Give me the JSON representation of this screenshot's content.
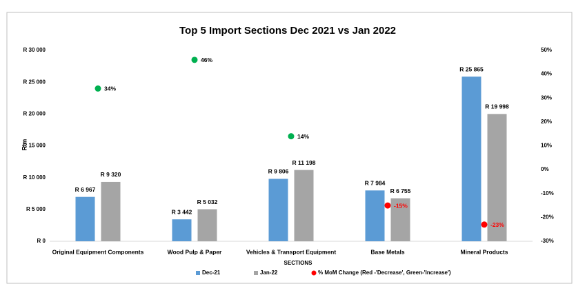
{
  "chart_data": {
    "type": "bar",
    "title": "Top 5 Import Sections Dec 2021 vs Jan 2022",
    "y_label": "R'm",
    "x_label": "SECTIONS",
    "categories": [
      "Original Equipment Components",
      "Wood Pulp & Paper",
      "Vehicles & Transport Equipment",
      "Base Metals",
      "Mineral Products"
    ],
    "series": [
      {
        "name": "Dec-21",
        "type": "bar",
        "color": "#5b9bd5",
        "values": [
          6967,
          3442,
          9806,
          7984,
          25865
        ],
        "value_labels": [
          "R 6 967",
          "R 3 442",
          "R 9 806",
          "R 7 984",
          "R 25 865"
        ]
      },
      {
        "name": "Jan-22",
        "type": "bar",
        "color": "#a5a5a5",
        "values": [
          9320,
          5032,
          11198,
          6755,
          19998
        ],
        "value_labels": [
          "R 9 320",
          "R 5 032",
          "R 11 198",
          "R 6 755",
          "R 19 998"
        ]
      },
      {
        "name": "% MoM Change (Red -'Decrease', Green-'Increase')",
        "type": "scatter",
        "axis": "y2",
        "color": "#ff0000",
        "colors": [
          "#00b050",
          "#00b050",
          "#00b050",
          "#ff0000",
          "#ff0000"
        ],
        "values": [
          34,
          46,
          14,
          -15,
          -23
        ],
        "value_labels": [
          "34%",
          "46%",
          "14%",
          "-15%",
          "-23%"
        ]
      }
    ],
    "ylim": [
      0,
      30000
    ],
    "yticks": [
      {
        "value": 0,
        "label": "R 0"
      },
      {
        "value": 5000,
        "label": "R 5 000"
      },
      {
        "value": 10000,
        "label": "R 10 000"
      },
      {
        "value": 15000,
        "label": "R 15 000"
      },
      {
        "value": 20000,
        "label": "R 20 000"
      },
      {
        "value": 25000,
        "label": "R 25 000"
      },
      {
        "value": 30000,
        "label": "R 30 000"
      }
    ],
    "y2lim": [
      -30,
      50
    ],
    "y2ticks": [
      {
        "value": -30,
        "label": "-30%"
      },
      {
        "value": -20,
        "label": "-20%"
      },
      {
        "value": -10,
        "label": "-10%"
      },
      {
        "value": 0,
        "label": "0%"
      },
      {
        "value": 10,
        "label": "10%"
      },
      {
        "value": 20,
        "label": "20%"
      },
      {
        "value": 30,
        "label": "30%"
      },
      {
        "value": 40,
        "label": "40%"
      },
      {
        "value": 50,
        "label": "50%"
      }
    ],
    "grid": false,
    "legend": "bottom"
  }
}
